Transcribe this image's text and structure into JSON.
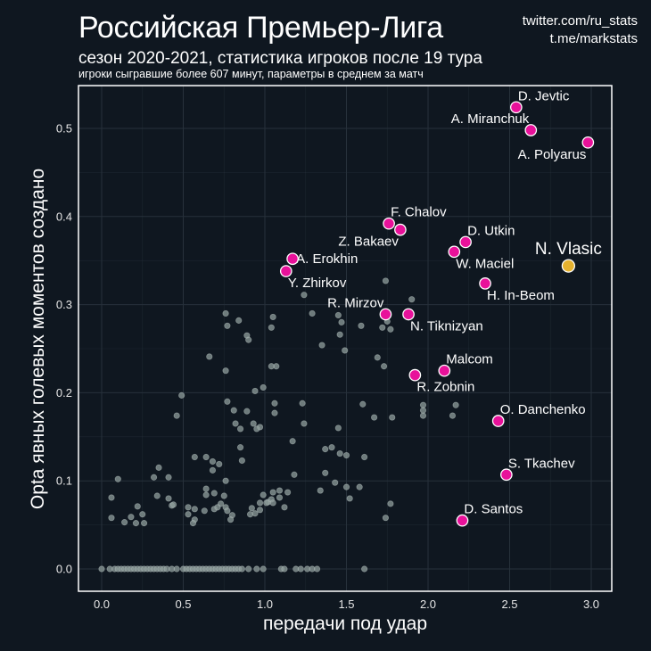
{
  "header": {
    "title": "Российская Премьер-Лига",
    "subtitle": "сезон 2020-2021, статистика игроков после 19 тура",
    "caption": "игроки сыгравшие более 607 минут, параметры в среднем за матч",
    "credit_line1": "twitter.com/ru_stats",
    "credit_line2": "t.me/markstats"
  },
  "colors": {
    "background": "#0f1720",
    "panel": "#0f1720",
    "grid": "#27313b",
    "frame": "#ffffff",
    "highlight": "#e8119a",
    "featured": "#e6b22e",
    "other": "#8f9d9b"
  },
  "chart_data": {
    "type": "scatter",
    "title": "Российская Премьер-Лига",
    "xlabel": "передачи под удар",
    "ylabel": "Opta явных голевых моментов создано",
    "xlim": [
      -0.13,
      3.1
    ],
    "ylim": [
      -0.025,
      0.55
    ],
    "xticks": [
      0.0,
      0.5,
      1.0,
      1.5,
      2.0,
      2.5,
      3.0
    ],
    "xtick_labels": [
      "0.0",
      "0.5",
      "1.0",
      "1.5",
      "2.0",
      "2.5",
      "3.0"
    ],
    "yticks": [
      0.0,
      0.1,
      0.2,
      0.3,
      0.4,
      0.5
    ],
    "ytick_labels": [
      "0.0",
      "0.1",
      "0.2",
      "0.3",
      "0.4",
      "0.5"
    ],
    "grid": true,
    "featured": {
      "name": "N. Vlasic",
      "x": 2.86,
      "y": 0.344
    },
    "highlighted": [
      {
        "name": "D. Jevtic",
        "x": 2.54,
        "y": 0.524,
        "label_pos": "upper-right"
      },
      {
        "name": "A. Miranchuk",
        "x": 2.63,
        "y": 0.498,
        "label_pos": "upper-left"
      },
      {
        "name": "A. Polyarus",
        "x": 2.98,
        "y": 0.484,
        "label_pos": "lower-left"
      },
      {
        "name": "F. Chalov",
        "x": 1.76,
        "y": 0.392,
        "label_pos": "upper-right"
      },
      {
        "name": "Z. Bakaev",
        "x": 1.83,
        "y": 0.385,
        "label_pos": "lower-left"
      },
      {
        "name": "D. Utkin",
        "x": 2.23,
        "y": 0.371,
        "label_pos": "upper-right"
      },
      {
        "name": "W. Maciel",
        "x": 2.16,
        "y": 0.36,
        "label_pos": "lower-right"
      },
      {
        "name": "A. Erokhin",
        "x": 1.17,
        "y": 0.352,
        "label_pos": "right"
      },
      {
        "name": "Y. Zhirkov",
        "x": 1.13,
        "y": 0.338,
        "label_pos": "lower-right"
      },
      {
        "name": "H. In-Beom",
        "x": 2.35,
        "y": 0.324,
        "label_pos": "lower-right"
      },
      {
        "name": "R. Mirzov",
        "x": 1.74,
        "y": 0.289,
        "label_pos": "upper-left"
      },
      {
        "name": "N. Tiknizyan",
        "x": 1.88,
        "y": 0.289,
        "label_pos": "lower-right"
      },
      {
        "name": "Malcom",
        "x": 2.1,
        "y": 0.225,
        "label_pos": "upper-right"
      },
      {
        "name": "R. Zobnin",
        "x": 1.92,
        "y": 0.22,
        "label_pos": "lower-right"
      },
      {
        "name": "O. Danchenko",
        "x": 2.43,
        "y": 0.168,
        "label_pos": "upper-right"
      },
      {
        "name": "S. Tkachev",
        "x": 2.48,
        "y": 0.107,
        "label_pos": "upper-right"
      },
      {
        "name": "D. Santos",
        "x": 2.21,
        "y": 0.055,
        "label_pos": "upper-right"
      }
    ],
    "others": [
      [
        1.29,
        0.29
      ],
      [
        0.76,
        0.29
      ],
      [
        0.84,
        0.282
      ],
      [
        1.45,
        0.288
      ],
      [
        0.77,
        0.276
      ],
      [
        0.89,
        0.265
      ],
      [
        1.04,
        0.274
      ],
      [
        0.66,
        0.241
      ],
      [
        0.9,
        0.26
      ],
      [
        1.07,
        0.23
      ],
      [
        0.76,
        0.225
      ],
      [
        0.99,
        0.206
      ],
      [
        0.49,
        0.197
      ],
      [
        0.94,
        0.202
      ],
      [
        0.77,
        0.19
      ],
      [
        0.81,
        0.18
      ],
      [
        0.89,
        0.179
      ],
      [
        1.06,
        0.188
      ],
      [
        1.06,
        0.177
      ],
      [
        0.46,
        0.174
      ],
      [
        0.82,
        0.165
      ],
      [
        0.85,
        0.159
      ],
      [
        0.93,
        0.165
      ],
      [
        0.97,
        0.161
      ],
      [
        0.95,
        0.159
      ],
      [
        0.85,
        0.138
      ],
      [
        0.86,
        0.123
      ],
      [
        0.57,
        0.127
      ],
      [
        0.64,
        0.127
      ],
      [
        0.68,
        0.122
      ],
      [
        0.72,
        0.119
      ],
      [
        0.68,
        0.112
      ],
      [
        0.35,
        0.115
      ],
      [
        0.32,
        0.104
      ],
      [
        0.1,
        0.102
      ],
      [
        0.41,
        0.104
      ],
      [
        0.06,
        0.081
      ],
      [
        0.34,
        0.083
      ],
      [
        0.41,
        0.08
      ],
      [
        0.64,
        0.091
      ],
      [
        0.76,
        0.1
      ],
      [
        0.64,
        0.084
      ],
      [
        0.69,
        0.086
      ],
      [
        0.75,
        0.083
      ],
      [
        0.73,
        0.074
      ],
      [
        0.76,
        0.07
      ],
      [
        0.77,
        0.066
      ],
      [
        0.69,
        0.068
      ],
      [
        0.71,
        0.07
      ],
      [
        0.22,
        0.071
      ],
      [
        0.43,
        0.072
      ],
      [
        0.44,
        0.073
      ],
      [
        0.53,
        0.07
      ],
      [
        0.57,
        0.068
      ],
      [
        0.63,
        0.066
      ],
      [
        0.53,
        0.062
      ],
      [
        0.57,
        0.056
      ],
      [
        0.56,
        0.052
      ],
      [
        0.06,
        0.058
      ],
      [
        0.18,
        0.059
      ],
      [
        0.25,
        0.062
      ],
      [
        0.14,
        0.053
      ],
      [
        0.21,
        0.052
      ],
      [
        0.26,
        0.052
      ],
      [
        0.8,
        0.061
      ],
      [
        0.79,
        0.056
      ],
      [
        0.92,
        0.069
      ],
      [
        0.91,
        0.062
      ],
      [
        0.94,
        0.063
      ],
      [
        0.97,
        0.067
      ],
      [
        1.02,
        0.076
      ],
      [
        1.04,
        0.079
      ],
      [
        1.09,
        0.081
      ],
      [
        1.01,
        0.075
      ],
      [
        1.17,
        0.145
      ],
      [
        1.37,
        0.136
      ],
      [
        1.41,
        0.138
      ],
      [
        1.46,
        0.131
      ],
      [
        1.5,
        0.129
      ],
      [
        1.61,
        0.127
      ],
      [
        1.18,
        0.107
      ],
      [
        1.37,
        0.109
      ],
      [
        1.43,
        0.098
      ],
      [
        1.34,
        0.089
      ],
      [
        1.5,
        0.093
      ],
      [
        1.58,
        0.093
      ],
      [
        1.52,
        0.08
      ],
      [
        0.99,
        0.084
      ],
      [
        1.05,
        0.087
      ],
      [
        1.09,
        0.089
      ],
      [
        1.14,
        0.087
      ],
      [
        0.97,
        0.075
      ],
      [
        1.05,
        0.075
      ],
      [
        1.12,
        0.07
      ],
      [
        1.77,
        0.074
      ],
      [
        1.74,
        0.058
      ],
      [
        1.74,
        0.327
      ],
      [
        1.24,
        0.311
      ],
      [
        1.9,
        0.306
      ],
      [
        1.05,
        0.286
      ],
      [
        1.47,
        0.28
      ],
      [
        1.59,
        0.276
      ],
      [
        1.75,
        0.281
      ],
      [
        1.72,
        0.274
      ],
      [
        1.77,
        0.272
      ],
      [
        1.46,
        0.266
      ],
      [
        1.35,
        0.254
      ],
      [
        1.49,
        0.248
      ],
      [
        1.04,
        0.23
      ],
      [
        1.69,
        0.24
      ],
      [
        1.73,
        0.23
      ],
      [
        1.23,
        0.188
      ],
      [
        1.6,
        0.187
      ],
      [
        1.97,
        0.186
      ],
      [
        1.97,
        0.174
      ],
      [
        1.24,
        0.165
      ],
      [
        1.67,
        0.172
      ],
      [
        1.45,
        0.16
      ],
      [
        1.78,
        0.172
      ],
      [
        1.97,
        0.18
      ],
      [
        2.17,
        0.186
      ],
      [
        2.15,
        0.174
      ]
    ],
    "zero_row_x": [
      0.0,
      0.05,
      0.08,
      0.1,
      0.12,
      0.14,
      0.16,
      0.18,
      0.2,
      0.22,
      0.24,
      0.26,
      0.28,
      0.3,
      0.32,
      0.34,
      0.36,
      0.38,
      0.4,
      0.43,
      0.46,
      0.5,
      0.52,
      0.54,
      0.56,
      0.58,
      0.6,
      0.62,
      0.64,
      0.66,
      0.68,
      0.7,
      0.72,
      0.74,
      0.76,
      0.78,
      0.8,
      0.82,
      0.84,
      0.86,
      0.9,
      0.95,
      0.99,
      1.1,
      1.12,
      1.19,
      1.22,
      1.26,
      1.29,
      1.32,
      1.61
    ]
  }
}
